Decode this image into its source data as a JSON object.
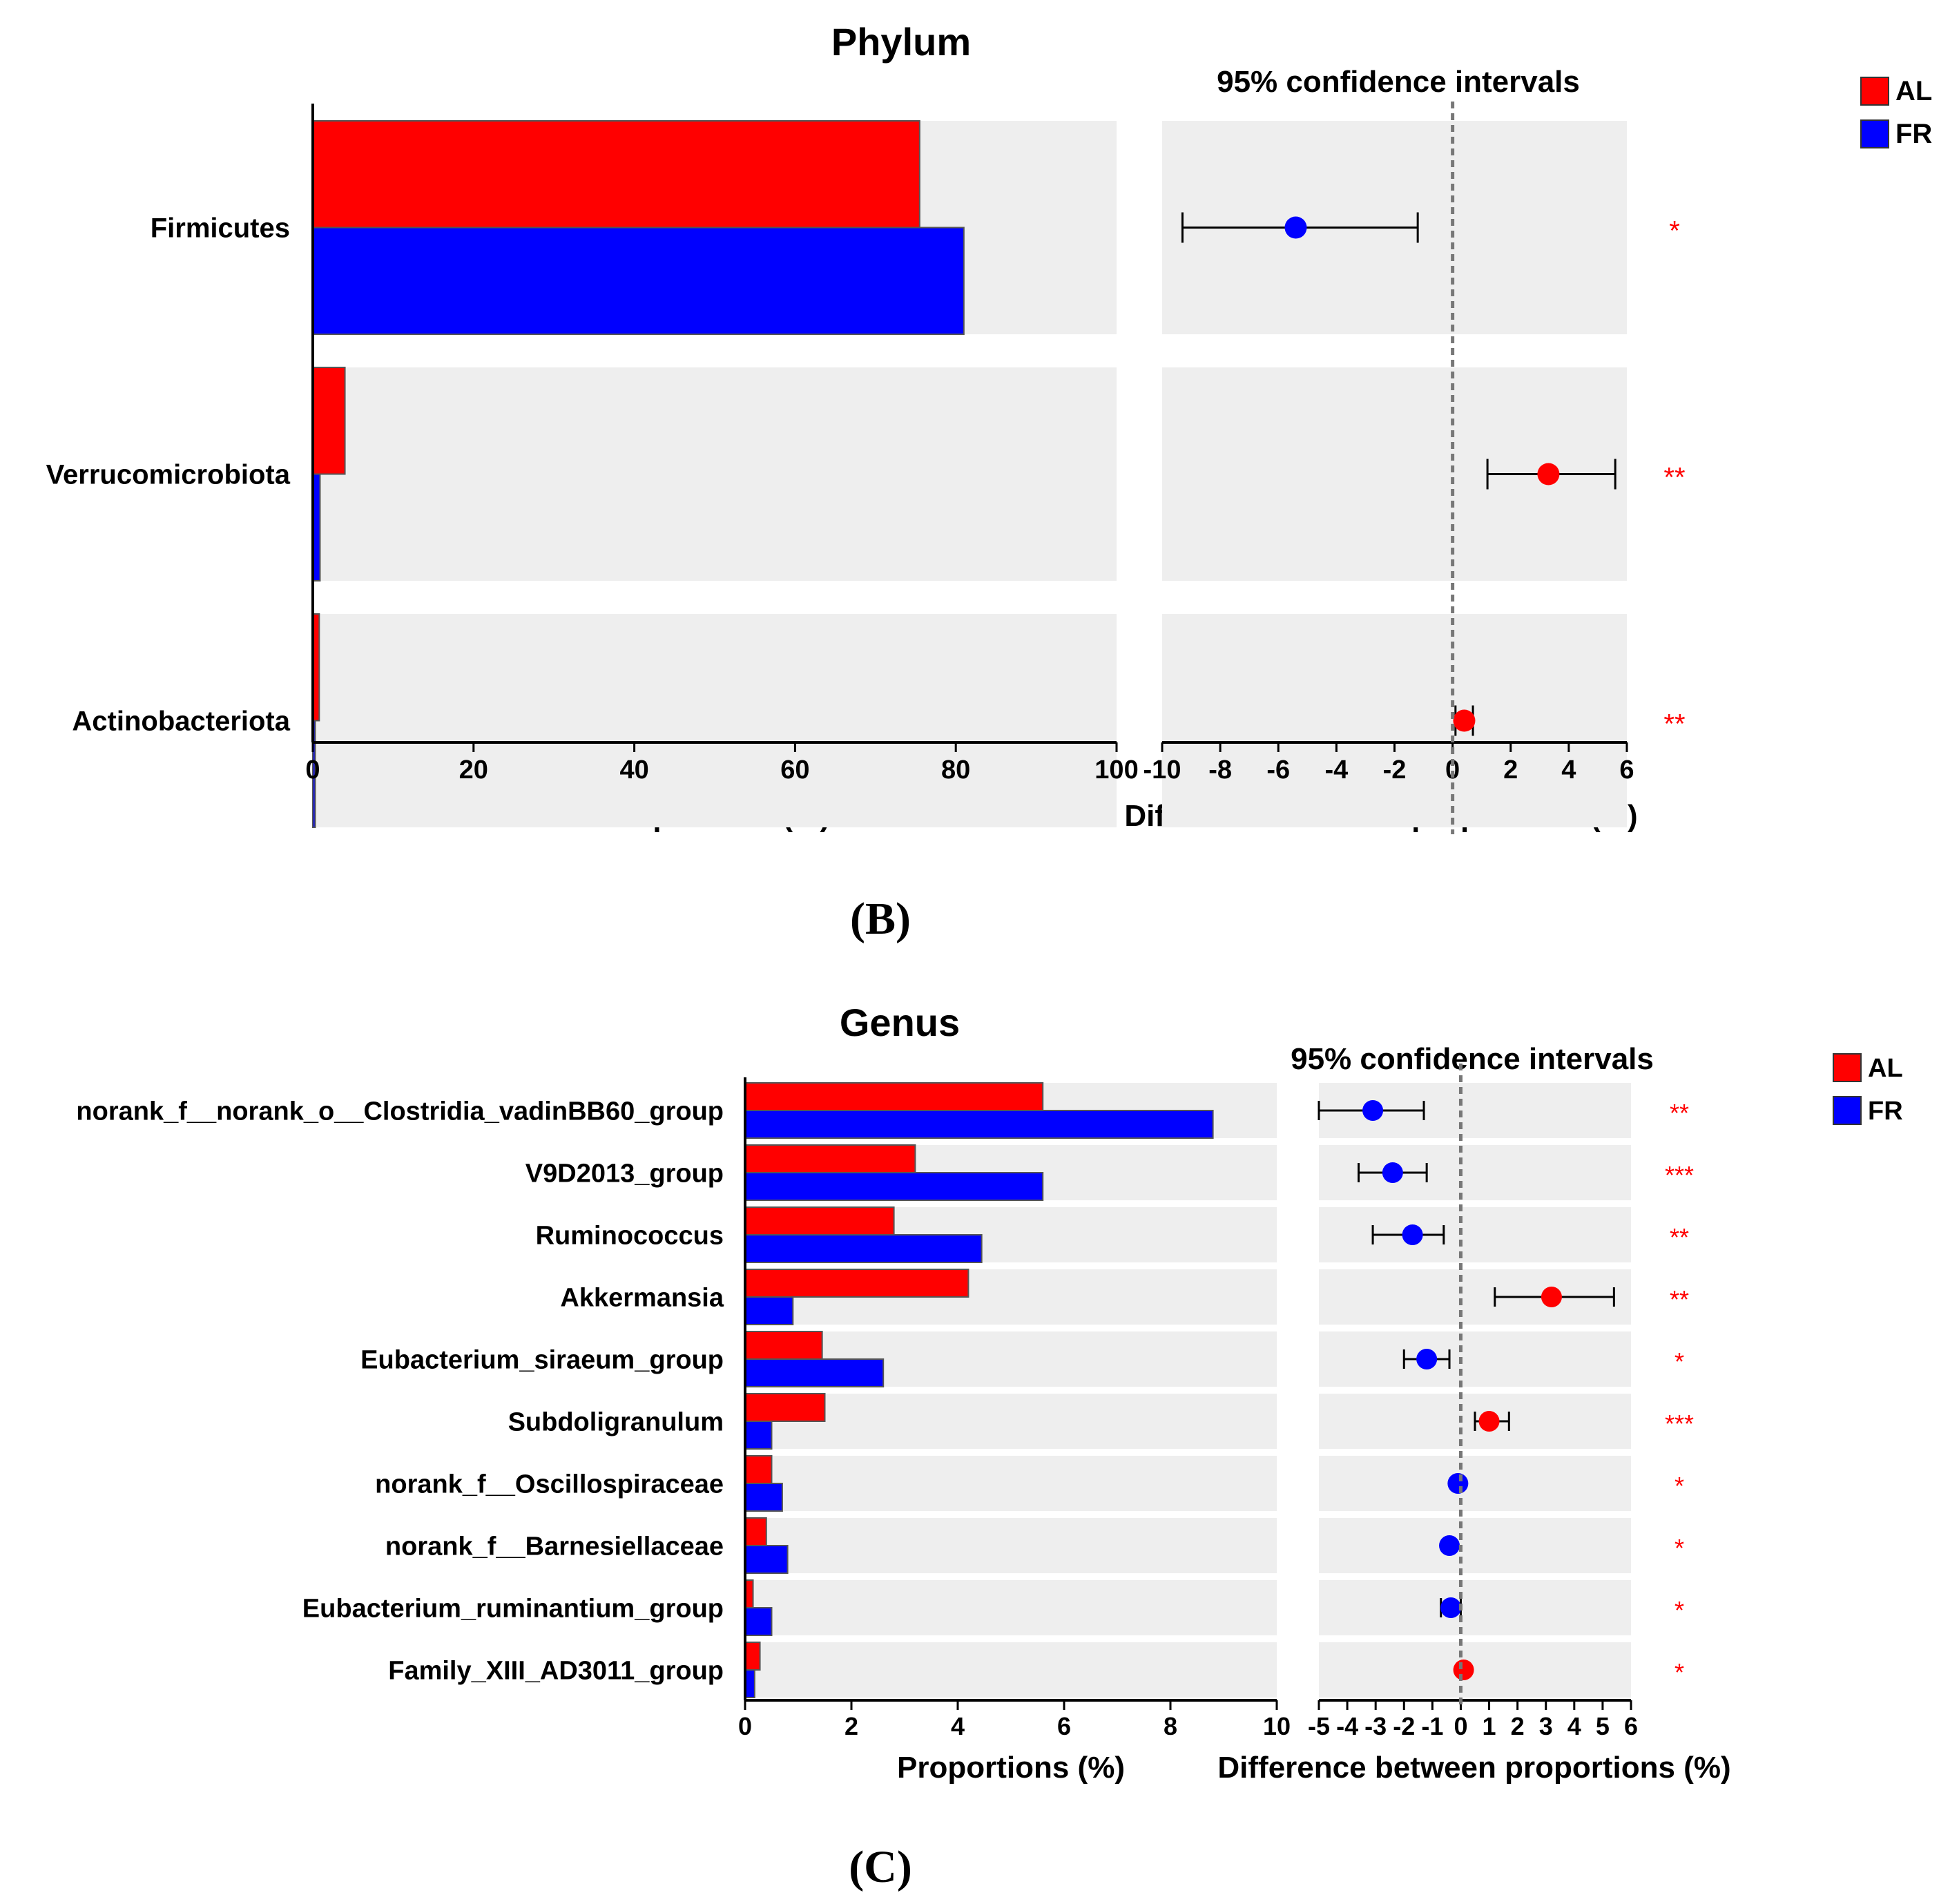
{
  "chart_data": [
    {
      "id": "phylum",
      "type": "bar",
      "title": "Phylum",
      "categories": [
        "Firmicutes",
        "Verrucomicrobiota",
        "Actinobacteriota"
      ],
      "series": [
        {
          "name": "AL",
          "color": "#ff0000",
          "values": [
            75.5,
            4.0,
            0.8
          ]
        },
        {
          "name": "FR",
          "color": "#0000ff",
          "values": [
            81.0,
            0.9,
            0.3
          ]
        }
      ],
      "xlabel": "Proportions (%)",
      "xlim": [
        0,
        100
      ],
      "xticks": [
        0,
        20,
        40,
        60,
        80,
        100
      ],
      "ci": {
        "title": "95% confidence intervals",
        "xlabel": "Difference between proportions (%)",
        "xlim": [
          -10,
          6
        ],
        "xticks": [
          -10,
          -8,
          -6,
          -4,
          -2,
          0,
          2,
          4,
          6
        ],
        "diffs": [
          -5.4,
          3.3,
          0.4
        ],
        "lower": [
          -9.3,
          1.2,
          0.1
        ],
        "upper": [
          -1.2,
          5.6,
          0.7
        ],
        "colors": [
          "#0000ff",
          "#ff0000",
          "#ff0000"
        ],
        "significance": [
          "*",
          "**",
          "**"
        ]
      },
      "legend": [
        "AL",
        "FR"
      ],
      "legend_position": "top-right"
    },
    {
      "id": "genus",
      "type": "bar",
      "title": "Genus",
      "categories": [
        "norank_f__norank_o__Clostridia_vadinBB60_group",
        "V9D2013_group",
        "Ruminococcus",
        "Akkermansia",
        "Eubacterium_siraeum_group",
        "Subdoligranulum",
        "norank_f__Oscillospiraceae",
        "norank_f__Barnesiellaceae",
        "Eubacterium_ruminantium_group",
        "Family_XIII_AD3011_group"
      ],
      "series": [
        {
          "name": "AL",
          "color": "#ff0000",
          "values": [
            5.6,
            3.2,
            2.8,
            4.2,
            1.45,
            1.5,
            0.5,
            0.4,
            0.15,
            0.28
          ]
        },
        {
          "name": "FR",
          "color": "#0000ff",
          "values": [
            8.8,
            5.6,
            4.45,
            0.9,
            2.6,
            0.5,
            0.7,
            0.8,
            0.5,
            0.18
          ]
        }
      ],
      "xlabel": "Proportions (%)",
      "xlim": [
        0,
        10
      ],
      "xticks": [
        0,
        2,
        4,
        6,
        8,
        10
      ],
      "ci": {
        "title": "95% confidence intervals",
        "xlabel": "Difference between proportions (%)",
        "xlim": [
          -5,
          6
        ],
        "xticks": [
          -5,
          -4,
          -3,
          -2,
          -1,
          0,
          1,
          2,
          3,
          4,
          5,
          6
        ],
        "diffs": [
          -3.1,
          -2.4,
          -1.7,
          3.2,
          -1.2,
          1.0,
          -0.1,
          -0.4,
          -0.35,
          0.1
        ],
        "lower": [
          -5.0,
          -3.6,
          -3.1,
          1.2,
          -2.0,
          0.5,
          -0.15,
          -0.5,
          -0.7,
          0.05
        ],
        "upper": [
          -1.3,
          -1.2,
          -0.6,
          5.4,
          -0.4,
          1.7,
          -0.05,
          -0.3,
          0.0,
          0.15
        ],
        "colors": [
          "#0000ff",
          "#0000ff",
          "#0000ff",
          "#ff0000",
          "#0000ff",
          "#ff0000",
          "#0000ff",
          "#0000ff",
          "#0000ff",
          "#ff0000"
        ],
        "significance": [
          "**",
          "***",
          "**",
          "**",
          "*",
          "***",
          "*",
          "*",
          "*",
          "*"
        ]
      },
      "legend": [
        "AL",
        "FR"
      ],
      "legend_position": "top-right"
    }
  ],
  "panel_labels": {
    "b": "(B)",
    "c": "(C)"
  }
}
